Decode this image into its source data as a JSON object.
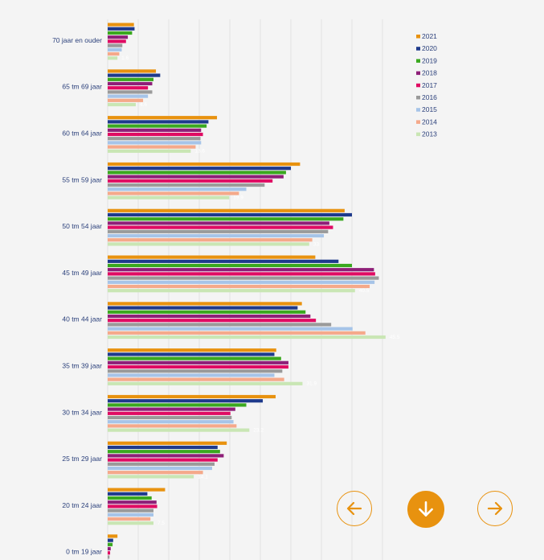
{
  "colors": {
    "accent": "#e8920f",
    "label": "#2a3f7a",
    "background": "#f4f4f4",
    "grid": "#e2e2e2"
  },
  "navigation": {
    "prev_icon": "arrow-left-icon",
    "down_icon": "arrow-down-icon",
    "next_icon": "arrow-right-icon"
  },
  "chart_data": {
    "type": "bar",
    "orientation": "horizontal",
    "categories": [
      "70 jaar en ouder",
      "65 tm 69 jaar",
      "60 tm 64 jaar",
      "55 tm 59 jaar",
      "50 tm 54 jaar",
      "45 tm 49 jaar",
      "40 tm 44 jaar",
      "35 tm 39 jaar",
      "30 tm 34 jaar",
      "25 tm 29 jaar",
      "20 tm 24 jaar",
      "0 tm 19 jaar"
    ],
    "series": [
      {
        "name": "2021",
        "color": "#e8920f",
        "values": [
          4.3,
          7.9,
          17.9,
          31.5,
          38.8,
          34.0,
          31.8,
          27.6,
          27.5,
          19.5,
          9.4,
          1.6
        ]
      },
      {
        "name": "2020",
        "color": "#1e3a8c",
        "values": [
          4.4,
          8.6,
          16.5,
          30.0,
          40.0,
          37.8,
          31.1,
          27.3,
          25.4,
          18.0,
          6.5,
          0.9
        ]
      },
      {
        "name": "2019",
        "color": "#3aa81f",
        "values": [
          4.0,
          7.5,
          16.2,
          29.2,
          38.6,
          40.0,
          32.4,
          28.4,
          22.7,
          18.4,
          7.2,
          0.8
        ]
      },
      {
        "name": "2018",
        "color": "#8e1f78",
        "values": [
          3.3,
          7.3,
          15.3,
          28.8,
          36.3,
          43.6,
          33.2,
          29.6,
          20.9,
          19.0,
          8.0,
          0.5
        ]
      },
      {
        "name": "2017",
        "color": "#e00b63",
        "values": [
          3.0,
          6.6,
          15.6,
          27.0,
          36.9,
          43.8,
          34.1,
          29.6,
          20.1,
          18.0,
          8.1,
          0.4
        ]
      },
      {
        "name": "2016",
        "color": "#9a9a9a",
        "values": [
          2.4,
          7.3,
          15.2,
          25.7,
          36.1,
          44.4,
          36.6,
          28.6,
          20.3,
          17.5,
          7.5,
          0.3
        ]
      },
      {
        "name": "2015",
        "color": "#a6c4e8",
        "values": [
          2.3,
          6.6,
          15.3,
          22.7,
          35.4,
          43.7,
          40.1,
          27.3,
          20.6,
          17.1,
          7.5,
          0.2
        ]
      },
      {
        "name": "2014",
        "color": "#f5a98a",
        "values": [
          1.9,
          5.8,
          14.4,
          21.5,
          33.5,
          42.9,
          42.2,
          28.9,
          21.1,
          15.6,
          7.0,
          0.2
        ]
      },
      {
        "name": "2013",
        "color": "#c9e6b4",
        "values": [
          1.6,
          4.6,
          13.6,
          19.9,
          33.0,
          40.5,
          45.5,
          31.9,
          23.2,
          14.1,
          7.5,
          0.2
        ]
      }
    ],
    "xlim": [
      0,
      45
    ],
    "grid": true,
    "legend_position": "top-right"
  }
}
